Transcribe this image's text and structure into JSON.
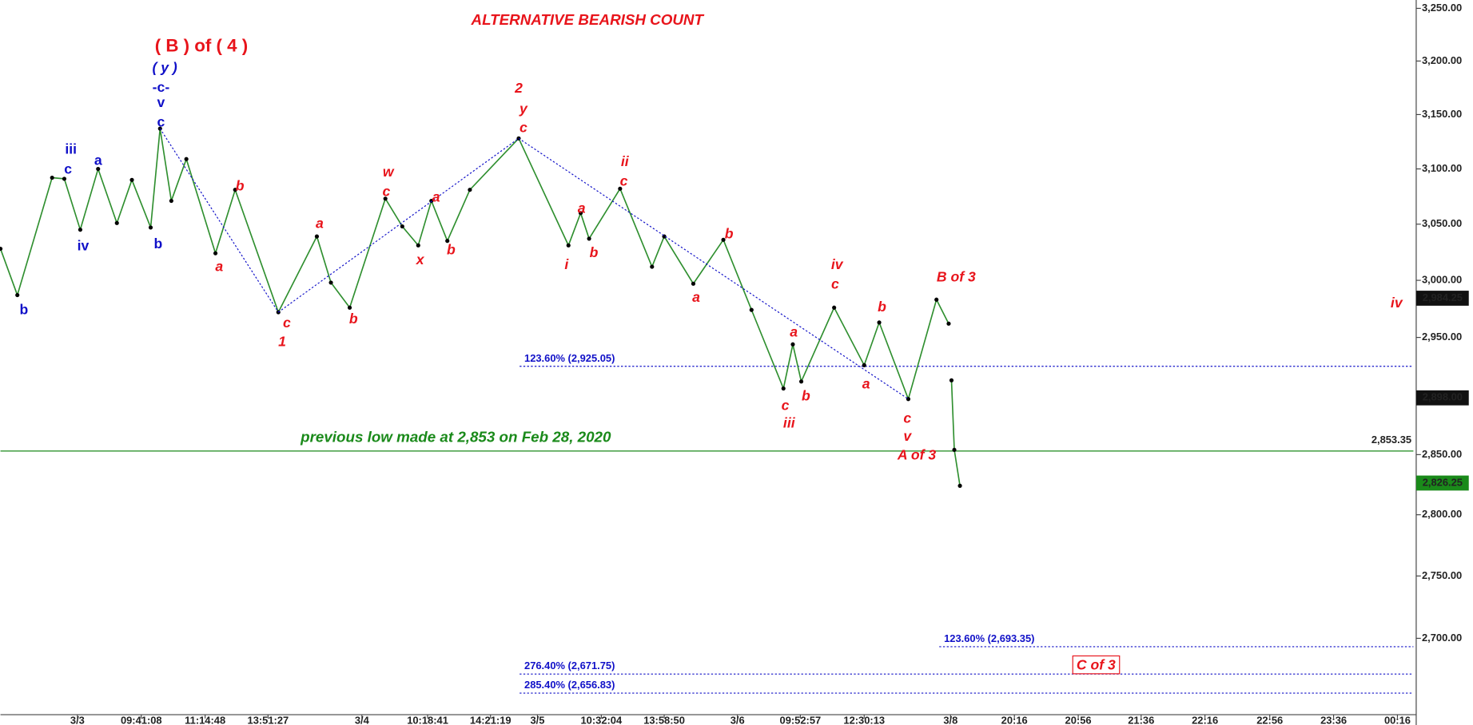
{
  "chart_data": {
    "type": "line",
    "title": "ALTERNATIVE BEARISH COUNT",
    "log_scale": true,
    "xlim": [
      0,
      1505
    ],
    "ylim": [
      2640,
      3258
    ],
    "xticks": [
      {
        "value": 82,
        "label": "3/3"
      },
      {
        "value": 150,
        "label": "09:41:08"
      },
      {
        "value": 218,
        "label": "11:14:48"
      },
      {
        "value": 285,
        "label": "13:51:27"
      },
      {
        "value": 385,
        "label": "3/4"
      },
      {
        "value": 455,
        "label": "10:18:41"
      },
      {
        "value": 522,
        "label": "14:21:19"
      },
      {
        "value": 572,
        "label": "3/5"
      },
      {
        "value": 640,
        "label": "10:32:04"
      },
      {
        "value": 707,
        "label": "13:58:50"
      },
      {
        "value": 785,
        "label": "3/6"
      },
      {
        "value": 852,
        "label": "09:52:57"
      },
      {
        "value": 920,
        "label": "12:30:13"
      },
      {
        "value": 1012,
        "label": "3/8"
      },
      {
        "value": 1080,
        "label": "20:16"
      },
      {
        "value": 1148,
        "label": "20:56"
      },
      {
        "value": 1215,
        "label": "21:36"
      },
      {
        "value": 1283,
        "label": "22:16"
      },
      {
        "value": 1352,
        "label": "22:56"
      },
      {
        "value": 1420,
        "label": "23:36"
      },
      {
        "value": 1488,
        "label": "00:16"
      }
    ],
    "yticks": [
      {
        "value": 3250,
        "label": "3,250.00"
      },
      {
        "value": 3200,
        "label": "3,200.00"
      },
      {
        "value": 3150,
        "label": "3,150.00"
      },
      {
        "value": 3100,
        "label": "3,100.00"
      },
      {
        "value": 3050,
        "label": "3,050.00"
      },
      {
        "value": 3000,
        "label": "3,000.00"
      },
      {
        "value": 2950,
        "label": "2,950.00"
      },
      {
        "value": 2850,
        "label": "2,850.00"
      },
      {
        "value": 2800,
        "label": "2,800.00"
      },
      {
        "value": 2750,
        "label": "2,750.00"
      },
      {
        "value": 2700,
        "label": "2,700.00"
      }
    ],
    "x": [
      0,
      18,
      55,
      68,
      85,
      104,
      124,
      140,
      160,
      170,
      182,
      198,
      229,
      250,
      296,
      337,
      352,
      372,
      410,
      428,
      445,
      459,
      476,
      500,
      552,
      605,
      618,
      627,
      660,
      694,
      707,
      738,
      770,
      800,
      834,
      844,
      853,
      888,
      920,
      936,
      967,
      997,
      1010,
      1012,
      1013,
      1016,
      1022
    ],
    "series": [
      {
        "color": "#2f8f2f",
        "values": [
          3028,
          2987,
          3092,
          3091,
          3045,
          3100,
          3051,
          3090,
          3047,
          3137,
          3071,
          3109,
          3024,
          3081,
          2972,
          3039,
          2998,
          2976,
          3073,
          3048,
          3031,
          3071,
          3035,
          3081,
          3128,
          3031,
          3060,
          3037,
          3082,
          3012,
          3039,
          2997,
          3036,
          2974,
          2906,
          2944,
          2912,
          2976,
          2926,
          2963,
          2897,
          2983,
          2962,
          null,
          2913,
          2854,
          2824
        ]
      }
    ],
    "reference_line": {
      "value": 2853,
      "color": "#1a8a1a",
      "label": "previous low made at 2,853 on Feb 28, 2020"
    },
    "fib_levels": [
      {
        "value": 2925.05,
        "label": "123.60% (2,925.05)"
      },
      {
        "value": 2693.35,
        "label": "123.60% (2,693.35)"
      },
      {
        "value": 2671.75,
        "label": "276.40% (2,671.75)"
      },
      {
        "value": 2656.83,
        "label": "285.40% (2,656.83)"
      }
    ],
    "price_labels": [
      {
        "value": 2984.25,
        "label": "2,984.25",
        "color": "#111111"
      },
      {
        "value": 2898,
        "label": "2,898.00",
        "color": "#111111"
      },
      {
        "value": 2826.25,
        "label": "2,826.25",
        "color": "#1a8a1a"
      },
      {
        "value": 2853.35,
        "label": "2,853.35",
        "color": "#1a8a1a"
      }
    ],
    "annotations": [
      {
        "text": "( B ) of ( 4 )",
        "color": "#e8141b"
      },
      {
        "text": "( y )",
        "color": "#1010c8"
      },
      {
        "text": "-c-",
        "color": "#1010c8"
      },
      {
        "text": "v",
        "color": "#1010c8"
      },
      {
        "text": "c",
        "color": "#1010c8"
      },
      {
        "text": "iii",
        "color": "#1010c8"
      },
      {
        "text": "c",
        "color": "#1010c8"
      },
      {
        "text": "a",
        "color": "#1010c8"
      },
      {
        "text": "iv",
        "color": "#1010c8"
      },
      {
        "text": "b",
        "color": "#1010c8"
      },
      {
        "text": "b",
        "color": "#1010c8"
      },
      {
        "text": "b",
        "color": "#e8141b"
      },
      {
        "text": "a",
        "color": "#e8141b"
      },
      {
        "text": "c",
        "color": "#e8141b"
      },
      {
        "text": "1",
        "color": "#e8141b"
      },
      {
        "text": "a",
        "color": "#e8141b"
      },
      {
        "text": "b",
        "color": "#e8141b"
      },
      {
        "text": "w",
        "color": "#e8141b"
      },
      {
        "text": "c",
        "color": "#e8141b"
      },
      {
        "text": "a",
        "color": "#e8141b"
      },
      {
        "text": "x",
        "color": "#e8141b"
      },
      {
        "text": "b",
        "color": "#e8141b"
      },
      {
        "text": "2",
        "color": "#e8141b"
      },
      {
        "text": "y",
        "color": "#e8141b"
      },
      {
        "text": "c",
        "color": "#e8141b"
      },
      {
        "text": "ii",
        "color": "#e8141b"
      },
      {
        "text": "c",
        "color": "#e8141b"
      },
      {
        "text": "a",
        "color": "#e8141b"
      },
      {
        "text": "i",
        "color": "#e8141b"
      },
      {
        "text": "b",
        "color": "#e8141b"
      },
      {
        "text": "b",
        "color": "#e8141b"
      },
      {
        "text": "a",
        "color": "#e8141b"
      },
      {
        "text": "iv",
        "color": "#e8141b"
      },
      {
        "text": "c",
        "color": "#e8141b"
      },
      {
        "text": "b",
        "color": "#e8141b"
      },
      {
        "text": "a",
        "color": "#e8141b"
      },
      {
        "text": "c",
        "color": "#e8141b"
      },
      {
        "text": "iii",
        "color": "#e8141b"
      },
      {
        "text": "b",
        "color": "#e8141b"
      },
      {
        "text": "a",
        "color": "#e8141b"
      },
      {
        "text": "c",
        "color": "#e8141b"
      },
      {
        "text": "v",
        "color": "#e8141b"
      },
      {
        "text": "A of 3",
        "color": "#e8141b"
      },
      {
        "text": "B of 3",
        "color": "#e8141b"
      },
      {
        "text": "iv",
        "color": "#e8141b"
      },
      {
        "text": "C of 3",
        "color": "#e8141b"
      }
    ]
  }
}
